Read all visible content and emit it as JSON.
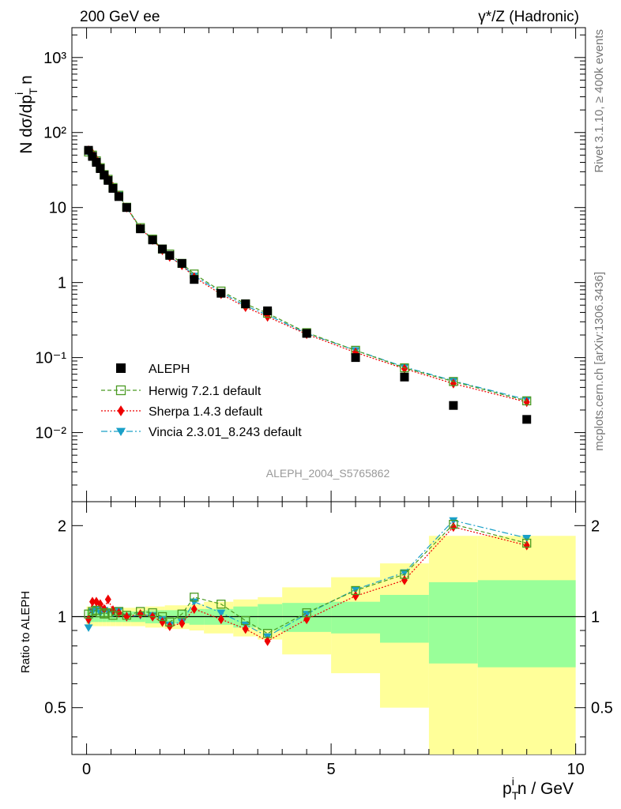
{
  "colors": {
    "aleph": "#000000",
    "herwig": "#4a9a22",
    "sherpa": "#ee0000",
    "vincia": "#1aa0c8",
    "band_inner": "#99ff99",
    "band_outer": "#ffff99"
  },
  "chart_data": {
    "type": "scatter",
    "header_left": "200 GeV ee",
    "header_right": "γ*/Z (Hadronic)",
    "side_label_top": "Rivet 3.1.10, ≥ 400k events",
    "side_label_bottom": "mcplots.cern.ch [arXiv:1306.3436]",
    "watermark": "ALEPH_2004_S5765862",
    "xlabel": "p_T^i n / GeV",
    "ylabel": "N dσ/dp_T^i n",
    "ratio_ylabel": "Ratio to ALEPH",
    "xlim": [
      -0.3,
      10.2
    ],
    "main_ylim_log": [
      0.0012,
      2500
    ],
    "ratio_ylim_log": [
      0.35,
      2.4
    ],
    "main_yticks": [
      {
        "label": "10³",
        "v": 1000
      },
      {
        "label": "10²",
        "v": 100
      },
      {
        "label": "10",
        "v": 10
      },
      {
        "label": "1",
        "v": 1
      },
      {
        "label": "10⁻¹",
        "v": 0.1
      },
      {
        "label": "10⁻²",
        "v": 0.01
      }
    ],
    "ratio_yticks": [
      {
        "label": "2",
        "v": 2
      },
      {
        "label": "1",
        "v": 1
      },
      {
        "label": "0.5",
        "v": 0.5
      }
    ],
    "xticks": [
      {
        "label": "0",
        "v": 0
      },
      {
        "label": "5",
        "v": 5
      },
      {
        "label": "10",
        "v": 10
      }
    ],
    "x": [
      0.04,
      0.12,
      0.2,
      0.28,
      0.36,
      0.44,
      0.54,
      0.66,
      0.82,
      1.1,
      1.35,
      1.55,
      1.7,
      1.95,
      2.2,
      2.75,
      3.25,
      3.7,
      4.5,
      5.5,
      6.5,
      7.5,
      9.0
    ],
    "bin_edges": [
      0.0,
      0.08,
      0.16,
      0.24,
      0.32,
      0.4,
      0.48,
      0.6,
      0.72,
      0.9,
      1.2,
      1.5,
      1.6,
      1.8,
      2.1,
      2.4,
      3.0,
      3.5,
      4.0,
      5.0,
      6.0,
      7.0,
      8.0,
      10.0
    ],
    "band_inner": [
      0.05,
      0.04,
      0.04,
      0.04,
      0.04,
      0.04,
      0.04,
      0.04,
      0.04,
      0.04,
      0.05,
      0.05,
      0.05,
      0.05,
      0.06,
      0.06,
      0.08,
      0.1,
      0.11,
      0.12,
      0.18,
      0.3,
      0.32
    ],
    "band_outer": [
      0.08,
      0.07,
      0.07,
      0.07,
      0.07,
      0.07,
      0.07,
      0.07,
      0.07,
      0.07,
      0.08,
      0.08,
      0.09,
      0.09,
      0.1,
      0.12,
      0.14,
      0.16,
      0.25,
      0.35,
      0.5,
      0.85,
      0.85
    ],
    "series": [
      {
        "name": "ALEPH",
        "marker": "square-filled",
        "values": [
          58,
          48,
          40,
          33,
          27,
          23,
          18,
          14,
          10,
          5.2,
          3.7,
          2.8,
          2.3,
          1.8,
          1.1,
          0.72,
          0.52,
          0.42,
          0.21,
          0.1,
          0.055,
          0.023,
          0.015
        ]
      },
      {
        "name": "Herwig 7.2.1 default",
        "marker": "square-open",
        "values": [
          55.0,
          50.0,
          42.0,
          34.0,
          27.5,
          23.8,
          18.5,
          14.6,
          10.1,
          5.4,
          3.8,
          2.8,
          2.4,
          1.8,
          1.3,
          0.77,
          0.52,
          0.39,
          0.215,
          0.125,
          0.073,
          0.048,
          0.0265
        ]
      },
      {
        "name": "Sherpa 1.4.3 default",
        "marker": "diamond-filled",
        "values": [
          58.0,
          53.0,
          44.0,
          35.0,
          28.0,
          24.5,
          18.9,
          14.4,
          10.0,
          5.3,
          3.7,
          2.7,
          2.2,
          1.7,
          1.18,
          0.7,
          0.47,
          0.35,
          0.205,
          0.117,
          0.071,
          0.045,
          0.0255
        ]
      },
      {
        "name": "Vincia 2.3.01_8.243 default",
        "marker": "triangle-down",
        "values": [
          54.0,
          50.0,
          42.0,
          34.0,
          28.0,
          23.8,
          18.6,
          14.8,
          10.0,
          5.25,
          3.72,
          2.75,
          2.2,
          1.72,
          1.23,
          0.74,
          0.49,
          0.37,
          0.21,
          0.125,
          0.075,
          0.049,
          0.0275
        ]
      }
    ],
    "ratios": [
      [
        1.02,
        1.04,
        1.05,
        1.03,
        1.02,
        1.03,
        1.01,
        1.04,
        1.01,
        1.04,
        1.03,
        1.0,
        0.96,
        1.02,
        1.16,
        1.1,
        0.97,
        0.88,
        1.03,
        1.22,
        1.38,
        2.02,
        1.75
      ],
      [
        0.98,
        1.12,
        1.12,
        1.1,
        1.06,
        1.14,
        1.05,
        1.03,
        1.0,
        1.02,
        1.0,
        0.96,
        0.93,
        0.95,
        1.06,
        0.98,
        0.91,
        0.83,
        0.98,
        1.17,
        1.32,
        1.98,
        1.72
      ],
      [
        0.92,
        1.04,
        1.06,
        1.03,
        1.05,
        1.04,
        1.03,
        1.05,
        1.0,
        1.01,
        1.01,
        0.98,
        0.94,
        0.96,
        1.12,
        1.03,
        0.94,
        0.86,
        1.02,
        1.23,
        1.4,
        2.08,
        1.82
      ]
    ]
  }
}
